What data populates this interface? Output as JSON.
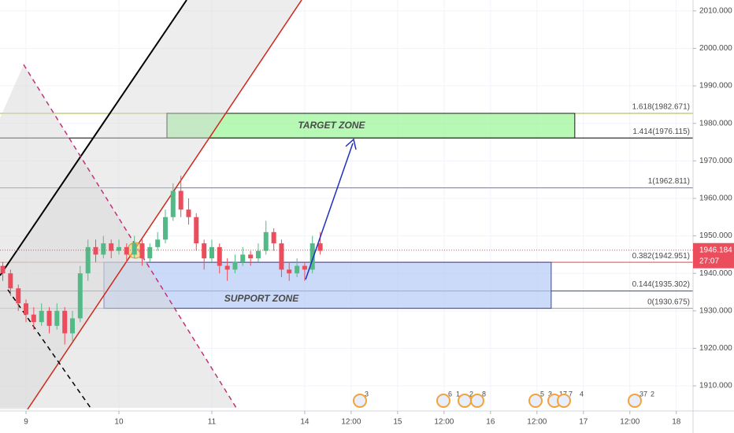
{
  "chart_data": {
    "type": "candlestick",
    "x": [
      -0.25,
      -0.167,
      -0.083,
      0,
      0.083,
      0.167,
      0.25,
      0.333,
      0.417,
      0.5,
      0.583,
      0.667,
      0.75,
      0.833,
      0.917,
      1,
      1.083,
      1.167,
      1.25,
      1.333,
      1.417,
      1.5,
      1.583,
      1.667,
      1.75,
      1.833,
      1.917,
      2,
      2.083,
      2.167,
      2.25,
      2.333,
      2.417,
      2.5,
      2.583,
      2.667,
      2.75,
      2.833,
      2.917,
      3,
      3.083,
      3.167
    ],
    "open": [
      1942,
      1940,
      1936,
      1932,
      1929,
      1927,
      1930,
      1926,
      1930,
      1924,
      1928,
      1940,
      1947,
      1945,
      1948,
      1946,
      1947,
      1945,
      1948,
      1944,
      1947,
      1949,
      1955,
      1962,
      1957,
      1955,
      1948,
      1944,
      1947,
      1942,
      1941,
      1943,
      1945,
      1944,
      1946,
      1951,
      1948,
      1941,
      1940,
      1942,
      1941,
      1948
    ],
    "high": [
      1943,
      1941,
      1937,
      1933,
      1931,
      1932,
      1931,
      1932,
      1931,
      1930,
      1942,
      1949,
      1949,
      1950,
      1949,
      1949,
      1948,
      1950,
      1949,
      1948,
      1951,
      1957,
      1964,
      1966,
      1960,
      1956,
      1949,
      1949,
      1948,
      1944,
      1945,
      1947,
      1946,
      1948,
      1954,
      1952,
      1949,
      1943,
      1944,
      1943,
      1950,
      1951
    ],
    "low": [
      1938,
      1934,
      1930,
      1927,
      1925,
      1926,
      1924,
      1925,
      1921,
      1922,
      1927,
      1938,
      1943,
      1944,
      1944,
      1945,
      1943,
      1944,
      1942,
      1943,
      1946,
      1948,
      1954,
      1955,
      1953,
      1946,
      1941,
      1943,
      1940,
      1938,
      1940,
      1942,
      1942,
      1943,
      1945,
      1946,
      1939,
      1938,
      1939,
      1938,
      1940,
      1945
    ],
    "close": [
      1940,
      1936,
      1932,
      1929,
      1927,
      1930,
      1926,
      1930,
      1924,
      1928,
      1940,
      1947,
      1945,
      1948,
      1946,
      1947,
      1945,
      1948,
      1944,
      1947,
      1949,
      1955,
      1962,
      1957,
      1955,
      1948,
      1944,
      1947,
      1942,
      1941,
      1943,
      1945,
      1944,
      1946,
      1951,
      1948,
      1941,
      1940,
      1942,
      1941,
      1948,
      1946
    ],
    "up_color": "#53b987",
    "down_color": "#eb4d5c",
    "xlim": [
      -0.28,
      7.18
    ],
    "xticks": [
      {
        "value": 0,
        "label": "9"
      },
      {
        "value": 1,
        "label": "10"
      },
      {
        "value": 2,
        "label": "11"
      },
      {
        "value": 3,
        "label": "14"
      },
      {
        "value": 3.5,
        "label": "12:00"
      },
      {
        "value": 4,
        "label": "15"
      },
      {
        "value": 4.5,
        "label": "12:00"
      },
      {
        "value": 5,
        "label": "16"
      },
      {
        "value": 5.5,
        "label": "12:00"
      },
      {
        "value": 6,
        "label": "17"
      },
      {
        "value": 6.5,
        "label": "12:00"
      },
      {
        "value": 7,
        "label": "18"
      }
    ],
    "ylim": [
      1903.3,
      2012.9
    ],
    "yticks": [
      {
        "value": 1910,
        "label": "1910.000"
      },
      {
        "value": 1920,
        "label": "1920.000"
      },
      {
        "value": 1930,
        "label": "1930.000"
      },
      {
        "value": 1940,
        "label": "1940.000"
      },
      {
        "value": 1950,
        "label": "1950.000"
      },
      {
        "value": 1960,
        "label": "1960.000"
      },
      {
        "value": 1970,
        "label": "1970.000"
      },
      {
        "value": 1980,
        "label": "1980.000"
      },
      {
        "value": 1990,
        "label": "1990.000"
      },
      {
        "value": 2000,
        "label": "2000.000"
      },
      {
        "value": 2010,
        "label": "2010.000"
      }
    ],
    "grid": true,
    "levels": [
      {
        "price": 1982.671,
        "label": "1.618(1982.671)",
        "color": "#a5b33c"
      },
      {
        "price": 1976.115,
        "label": "1.414(1976.115)",
        "color": "#000000"
      },
      {
        "price": 1962.811,
        "label": "1(1962.811)",
        "color": "#787b86"
      },
      {
        "price": 1942.951,
        "label": "0.382(1942.951)",
        "color": "#e34848"
      },
      {
        "price": 1935.302,
        "label": "0.144(1935.302)",
        "color": "#3343b0"
      },
      {
        "price": 1930.675,
        "label": "0(1930.675)",
        "color": "#9598a1"
      }
    ],
    "zones": [
      {
        "label": "TARGET ZONE",
        "x": [
          1.517,
          5.907
        ],
        "y": [
          1976.115,
          1982.671
        ],
        "fill": "#9df59b",
        "stroke": "#1a1a1a",
        "text_color": "#2e3b8c"
      },
      {
        "label": "SUPPORT ZONE",
        "x": [
          0.839,
          5.653
        ],
        "y": [
          1930.675,
          1942.951
        ],
        "fill": "#b8cdf5",
        "stroke": "#3343b0",
        "text_color": "#3a2fa8"
      }
    ],
    "last_price": {
      "value": 1946.184,
      "label": "1946.184"
    },
    "countdown": "27:07",
    "events": [
      "3",
      "6",
      "1",
      "2",
      "8",
      "5",
      "3",
      "17",
      "7",
      "4",
      "37",
      "2"
    ]
  }
}
